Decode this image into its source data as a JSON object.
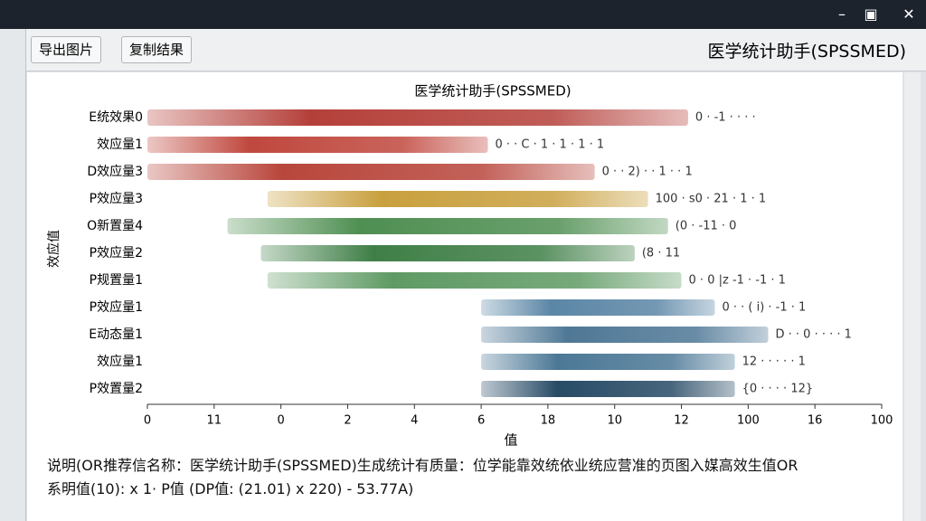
{
  "window": {
    "toolbar": {
      "export": "导出图片",
      "copy": "复制结果",
      "brand": "医学统计助手(SPSSMED)"
    }
  },
  "chart_data": {
    "type": "rangebar",
    "title": "医学统计助手(SPSSMED)",
    "x_label": "值",
    "y_label": "效应值",
    "categories": [
      "E统效果0",
      "效应量1",
      "D效应量3",
      "P效应量3",
      "O新置量4",
      "P效应量2",
      "P规置量1",
      "P效应量1",
      "E动态量1",
      "效应量1",
      "P效置量2"
    ],
    "starts": [
      0,
      0,
      0,
      1.8,
      1.2,
      1.7,
      1.8,
      5,
      5,
      5,
      5
    ],
    "ends": [
      8.1,
      5.1,
      6.7,
      7.5,
      7.8,
      7.3,
      8,
      8.5,
      9.3,
      8.8,
      8.8
    ],
    "colors": [
      "#b5403a",
      "#c0483e",
      "#b8463c",
      "#c9a03e",
      "#4f8f52",
      "#3f7f47",
      "#5f9a64",
      "#5b86a6",
      "#4f7896",
      "#4c7896",
      "#284b66"
    ],
    "notes": [
      "0 · -1 · · · ·",
      "0 · · C · 1 · 1 · 1 · 1",
      "0 · · 2) · · 1 · · 1",
      "100 · s0 · 21 · 1 · 1",
      "(0 · -11 · 0",
      "(8 · 11",
      "0 · 0 |z -1 · -1 · 1",
      "0 · · ( i) · -1 · 1",
      "D · · 0 · · · · 1",
      "12 · · · · · 1",
      "{0 · · · · 12}"
    ],
    "xlim": [
      0,
      11
    ],
    "xticks": [
      {
        "value": 0,
        "label": "0"
      },
      {
        "value": 1,
        "label": "11"
      },
      {
        "value": 2,
        "label": "0"
      },
      {
        "value": 3,
        "label": "2"
      },
      {
        "value": 4,
        "label": "4"
      },
      {
        "value": 5,
        "label": "6"
      },
      {
        "value": 6,
        "label": "18"
      },
      {
        "value": 7,
        "label": "10"
      },
      {
        "value": 8,
        "label": "12"
      },
      {
        "value": 9,
        "label": "100"
      },
      {
        "value": 10,
        "label": "16"
      },
      {
        "value": 11,
        "label": "100"
      }
    ]
  },
  "footnote": [
    "说明(OR推荐信名称：医学统计助手(SPSSMED)生成统计有质量：位学能靠效统依业统应营准的页图入媒高效生值OR",
    "系明值(10): x 1· P值 (DP值: (21.01) x 220) - 53.77A)"
  ]
}
